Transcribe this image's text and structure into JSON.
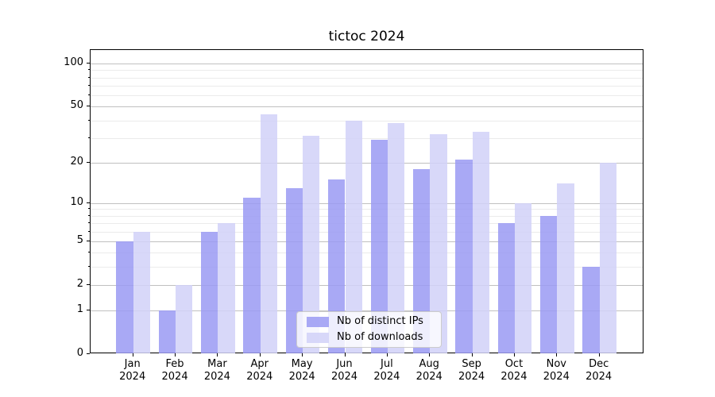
{
  "chart_data": {
    "type": "bar",
    "title": "tictoc 2024",
    "categories": [
      "Jan",
      "Feb",
      "Mar",
      "Apr",
      "May",
      "Jun",
      "Jul",
      "Aug",
      "Sep",
      "Oct",
      "Nov",
      "Dec"
    ],
    "year_suffix": "2024",
    "series": [
      {
        "name": "Nb of distinct IPs",
        "values": [
          5,
          1,
          6,
          11,
          13,
          15,
          29,
          18,
          21,
          7,
          8,
          3
        ]
      },
      {
        "name": "Nb of downloads",
        "values": [
          6,
          2,
          7,
          44,
          31,
          40,
          38,
          32,
          33,
          10,
          14,
          20
        ]
      }
    ],
    "yscale": "log-like (log1p)",
    "y_major_ticks": [
      100,
      50,
      20,
      10,
      5,
      2,
      1,
      0
    ],
    "y_minor_ticks": [
      3,
      4,
      6,
      7,
      8,
      9,
      30,
      40,
      60,
      70,
      80,
      90
    ],
    "ylim": [
      0,
      120
    ],
    "xlabel": "",
    "ylabel": "",
    "grid": "on",
    "legend_position": "lower center"
  },
  "legend": {
    "items": [
      {
        "label": "Nb of distinct IPs"
      },
      {
        "label": "Nb of downloads"
      }
    ]
  },
  "colors": {
    "bar_ips": "#9a9af3",
    "bar_downloads": "#d1d1f8",
    "grid_major": "#c0c0c0",
    "grid_minor": "#ebebeb",
    "axis": "#000000",
    "legend_bg": "rgba(255,255,255,0.8)",
    "legend_border": "#cccccc",
    "title_color": "#000000"
  }
}
